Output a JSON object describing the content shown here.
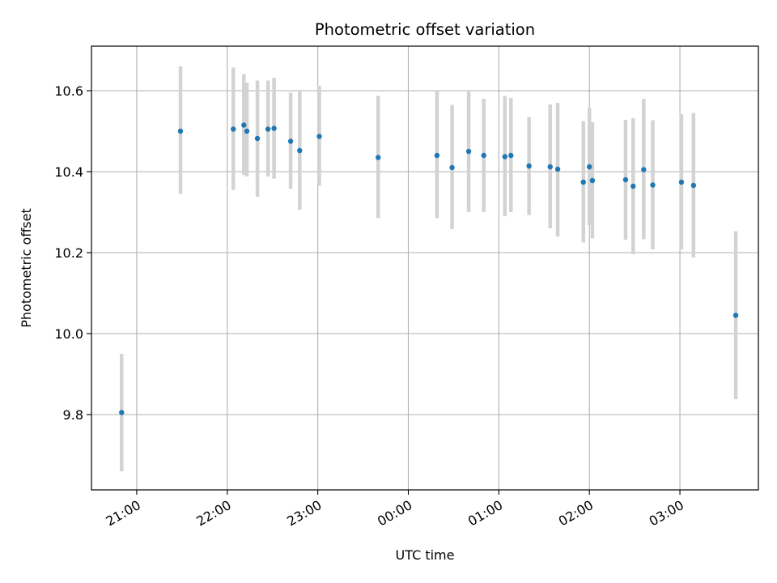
{
  "chart_data": {
    "type": "scatter",
    "title": "Photometric offset variation",
    "xlabel": "UTC time",
    "ylabel": "Photometric offset",
    "x_ticks": [
      "21:00",
      "22:00",
      "23:00",
      "00:00",
      "01:00",
      "02:00",
      "03:00"
    ],
    "y_ticks": [
      "9.8",
      "10.0",
      "10.2",
      "10.4",
      "10.6"
    ],
    "grid": true,
    "colors": {
      "point": "#1f77b4",
      "errorbar": "#d3d3d3",
      "grid": "#b0b0b0"
    },
    "points": [
      {
        "t": "20:50",
        "y": 9.805,
        "lo": 9.66,
        "hi": 9.95
      },
      {
        "t": "21:29",
        "y": 10.5,
        "lo": 10.345,
        "hi": 10.66
      },
      {
        "t": "22:04",
        "y": 10.505,
        "lo": 10.355,
        "hi": 10.657
      },
      {
        "t": "22:11",
        "y": 10.515,
        "lo": 10.392,
        "hi": 10.641
      },
      {
        "t": "22:13",
        "y": 10.5,
        "lo": 10.388,
        "hi": 10.62
      },
      {
        "t": "22:20",
        "y": 10.482,
        "lo": 10.338,
        "hi": 10.625
      },
      {
        "t": "22:27",
        "y": 10.505,
        "lo": 10.388,
        "hi": 10.625
      },
      {
        "t": "22:31",
        "y": 10.507,
        "lo": 10.383,
        "hi": 10.632
      },
      {
        "t": "22:42",
        "y": 10.475,
        "lo": 10.358,
        "hi": 10.595
      },
      {
        "t": "22:48",
        "y": 10.452,
        "lo": 10.306,
        "hi": 10.598
      },
      {
        "t": "23:01",
        "y": 10.487,
        "lo": 10.365,
        "hi": 10.612
      },
      {
        "t": "23:40",
        "y": 10.435,
        "lo": 10.285,
        "hi": 10.587
      },
      {
        "t": "00:19",
        "y": 10.44,
        "lo": 10.285,
        "hi": 10.6
      },
      {
        "t": "00:29",
        "y": 10.41,
        "lo": 10.258,
        "hi": 10.565
      },
      {
        "t": "00:40",
        "y": 10.45,
        "lo": 10.3,
        "hi": 10.598
      },
      {
        "t": "00:50",
        "y": 10.44,
        "lo": 10.3,
        "hi": 10.58
      },
      {
        "t": "01:04",
        "y": 10.437,
        "lo": 10.29,
        "hi": 10.587
      },
      {
        "t": "01:08",
        "y": 10.44,
        "lo": 10.3,
        "hi": 10.582
      },
      {
        "t": "01:20",
        "y": 10.414,
        "lo": 10.293,
        "hi": 10.535
      },
      {
        "t": "01:34",
        "y": 10.412,
        "lo": 10.26,
        "hi": 10.566
      },
      {
        "t": "01:39",
        "y": 10.406,
        "lo": 10.24,
        "hi": 10.57
      },
      {
        "t": "01:56",
        "y": 10.374,
        "lo": 10.225,
        "hi": 10.525
      },
      {
        "t": "02:00",
        "y": 10.412,
        "lo": 10.268,
        "hi": 10.558
      },
      {
        "t": "02:02",
        "y": 10.378,
        "lo": 10.235,
        "hi": 10.522
      },
      {
        "t": "02:24",
        "y": 10.38,
        "lo": 10.232,
        "hi": 10.528
      },
      {
        "t": "02:29",
        "y": 10.364,
        "lo": 10.196,
        "hi": 10.532
      },
      {
        "t": "02:36",
        "y": 10.405,
        "lo": 10.233,
        "hi": 10.58
      },
      {
        "t": "02:42",
        "y": 10.367,
        "lo": 10.208,
        "hi": 10.527
      },
      {
        "t": "03:01",
        "y": 10.374,
        "lo": 10.208,
        "hi": 10.542
      },
      {
        "t": "03:09",
        "y": 10.366,
        "lo": 10.188,
        "hi": 10.545
      },
      {
        "t": "03:37",
        "y": 10.045,
        "lo": 9.838,
        "hi": 10.253
      }
    ],
    "xlim": [
      "20:30",
      "03:52"
    ],
    "ylim": [
      9.614,
      10.71
    ]
  }
}
